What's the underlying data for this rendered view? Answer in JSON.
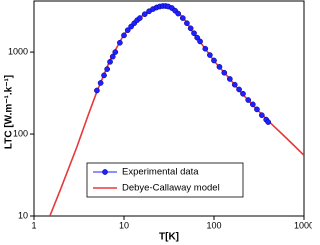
{
  "chart_data": {
    "type": "line",
    "xlabel": "T[K]",
    "ylabel": "LTC [W.m⁻¹.k⁻¹]",
    "xscale": "log",
    "yscale": "log",
    "xlim": [
      1,
      1000
    ],
    "ylim": [
      10,
      4200
    ],
    "xticks": [
      1,
      10,
      100,
      1000
    ],
    "yticks": [
      10,
      100,
      1000
    ],
    "legend": "lower center",
    "series": [
      {
        "name": "Experimental data",
        "color": "#1f1fff",
        "mode": "markers",
        "x": [
          5,
          5.5,
          6,
          6.5,
          7,
          7.5,
          8,
          9,
          10,
          11,
          12,
          13,
          14,
          15,
          17,
          19,
          21,
          23,
          25,
          27,
          29,
          31,
          34,
          37,
          40,
          45,
          50,
          55,
          60,
          65,
          70,
          80,
          90,
          100,
          115,
          130,
          150,
          170,
          190,
          210,
          240,
          270,
          300,
          340,
          380,
          400
        ],
        "values": [
          340,
          420,
          520,
          620,
          760,
          880,
          1000,
          1300,
          1600,
          1850,
          2050,
          2250,
          2450,
          2600,
          2900,
          3150,
          3350,
          3500,
          3600,
          3650,
          3650,
          3600,
          3450,
          3200,
          2950,
          2600,
          2250,
          1950,
          1700,
          1500,
          1350,
          1100,
          920,
          790,
          660,
          560,
          470,
          400,
          350,
          310,
          260,
          230,
          200,
          170,
          150,
          140
        ]
      },
      {
        "name": "Debye-Callaway model",
        "color": "#e8383a",
        "mode": "line",
        "x": [
          1.5,
          2,
          3,
          4,
          5,
          7,
          10,
          15,
          20,
          28,
          35,
          40,
          50,
          60,
          80,
          100,
          150,
          200,
          300,
          400,
          600,
          800,
          1000
        ],
        "values": [
          10,
          22,
          70,
          170,
          330,
          800,
          1650,
          2650,
          3250,
          3700,
          3450,
          3050,
          2300,
          1650,
          1100,
          780,
          470,
          320,
          200,
          145,
          95,
          70,
          55
        ]
      }
    ]
  }
}
